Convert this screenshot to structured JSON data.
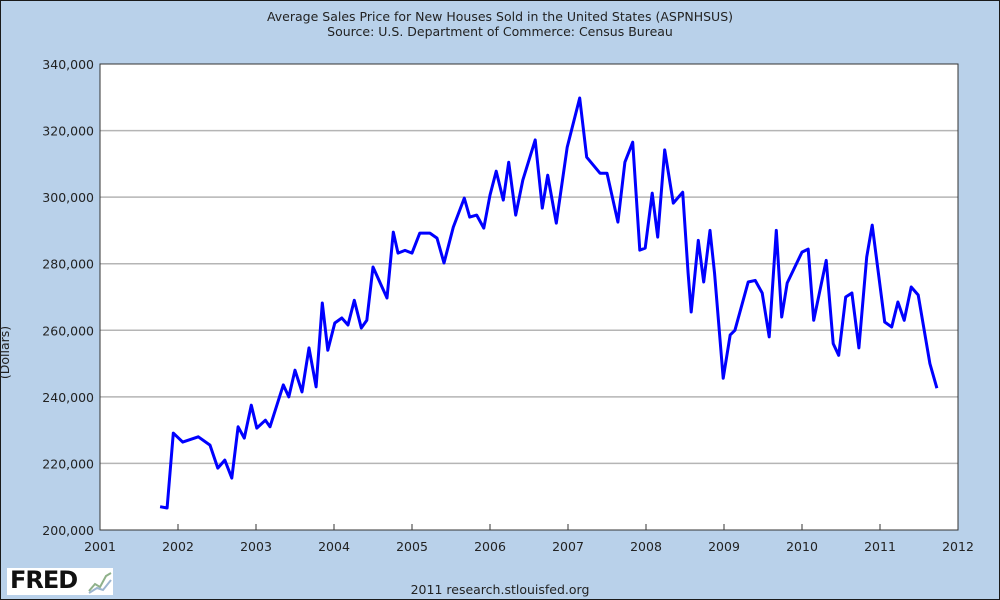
{
  "chart_data": {
    "type": "line",
    "title": "Average Sales Price for New Houses Sold in the United States (ASPNHSUS)",
    "subtitle": "Source: U.S. Department of Commerce: Census Bureau",
    "xlabel": "",
    "ylabel": "(Dollars)",
    "xlim": [
      2001,
      2012
    ],
    "ylim": [
      200000,
      340000
    ],
    "x_ticks": [
      "2001",
      "2002",
      "2003",
      "2004",
      "2005",
      "2006",
      "2007",
      "2008",
      "2009",
      "2010",
      "2011",
      "2012"
    ],
    "y_ticks": [
      "200,000",
      "220,000",
      "240,000",
      "260,000",
      "280,000",
      "300,000",
      "320,000",
      "340,000"
    ],
    "grid": "horizontal",
    "line_color": "#0000ff",
    "series": [
      {
        "x": [
          2001.77,
          2001.86,
          2001.94,
          2002.06,
          2002.26,
          2002.41,
          2002.51,
          2002.6,
          2002.69,
          2002.77,
          2002.85,
          2002.94,
          2003.01,
          2003.12,
          2003.18,
          2003.35,
          2003.42,
          2003.5,
          2003.59,
          2003.68,
          2003.77,
          2003.85,
          2003.92,
          2004.01,
          2004.1,
          2004.18,
          2004.26,
          2004.35,
          2004.42,
          2004.5,
          2004.68,
          2004.76,
          2004.82,
          2004.91,
          2005.0,
          2005.1,
          2005.23,
          2005.32,
          2005.41,
          2005.53,
          2005.67,
          2005.74,
          2005.83,
          2005.92,
          2006.0,
          2006.08,
          2006.17,
          2006.24,
          2006.33,
          2006.42,
          2006.58,
          2006.67,
          2006.74,
          2006.85,
          2006.99,
          2007.15,
          2007.24,
          2007.41,
          2007.5,
          2007.64,
          2007.73,
          2007.83,
          2007.92,
          2007.99,
          2008.08,
          2008.15,
          2008.24,
          2008.35,
          2008.47,
          2008.54,
          2008.58,
          2008.67,
          2008.74,
          2008.82,
          2008.88,
          2008.99,
          2009.08,
          2009.14,
          2009.31,
          2009.4,
          2009.49,
          2009.58,
          2009.67,
          2009.74,
          2009.81,
          2010.0,
          2010.08,
          2010.15,
          2010.31,
          2010.4,
          2010.47,
          2010.56,
          2010.64,
          2010.73,
          2010.83,
          2010.9,
          2011.06,
          2011.15,
          2011.23,
          2011.31,
          2011.4,
          2011.49,
          2011.64,
          2011.73
        ],
        "values": [
          207000,
          206600,
          229100,
          226400,
          228000,
          225500,
          218600,
          221000,
          215600,
          231000,
          227600,
          237500,
          230600,
          233000,
          231000,
          243600,
          240000,
          248000,
          241500,
          254700,
          243000,
          268200,
          254000,
          262200,
          263700,
          261600,
          269000,
          260700,
          263000,
          279000,
          269700,
          289500,
          283200,
          284000,
          283200,
          289200,
          289200,
          287700,
          280200,
          291000,
          299700,
          294000,
          294600,
          290700,
          300600,
          307800,
          299100,
          310500,
          294600,
          305100,
          317200,
          296700,
          306600,
          292200,
          315000,
          329800,
          312000,
          307200,
          307200,
          292500,
          310500,
          316500,
          284100,
          284700,
          301200,
          288000,
          314200,
          298200,
          301500,
          277200,
          265500,
          287000,
          274500,
          290000,
          277000,
          245600,
          258600,
          260000,
          274500,
          275000,
          271200,
          258000,
          290000,
          264000,
          274200,
          283500,
          284400,
          263000,
          281000,
          256000,
          252500,
          270000,
          271200,
          254700,
          282000,
          291600,
          262500,
          261000,
          268500,
          263000,
          273000,
          270600,
          250000,
          242600
        ]
      }
    ]
  },
  "footer": "2011 research.stlouisfed.org",
  "logo": "FRED"
}
